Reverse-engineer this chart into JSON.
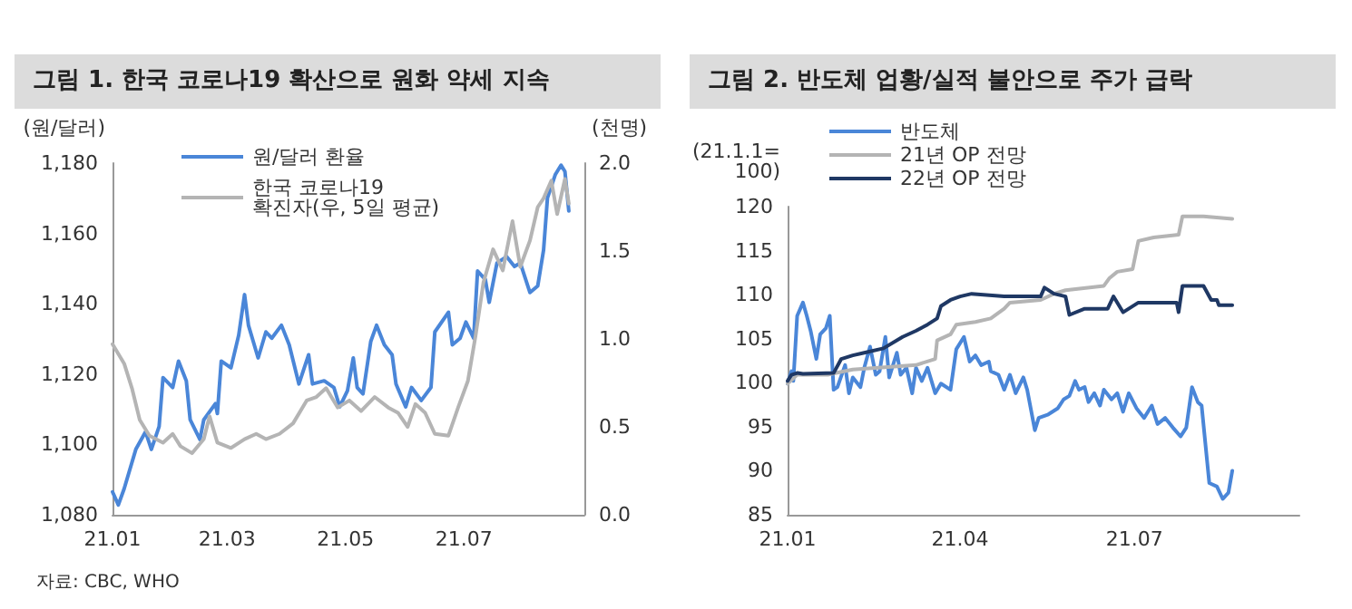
{
  "chart_data": [
    {
      "type": "line",
      "title": "그림 1. 한국 코로나19 확산으로 원화 약세 지속",
      "ylabel": "(원/달러)",
      "y2label": "(천명)",
      "legend": "top left",
      "annotations": [
        "자료: CBC, WHO"
      ],
      "xlim": [
        "--01-01",
        "--09-01"
      ],
      "xticks": [
        {
          "value": "--01-01",
          "label": "21.01"
        },
        {
          "value": "--03-01",
          "label": "21.03"
        },
        {
          "value": "--05-01",
          "label": "21.05"
        },
        {
          "value": "--07-01",
          "label": "21.07"
        }
      ],
      "ylim": [
        1080,
        1180
      ],
      "yticks": [
        {
          "value": 1080,
          "label": "1,080"
        },
        {
          "value": 1100,
          "label": "1,100"
        },
        {
          "value": 1120,
          "label": "1,120"
        },
        {
          "value": 1140,
          "label": "1,140"
        },
        {
          "value": 1160,
          "label": "1,160"
        },
        {
          "value": 1180,
          "label": "1,180"
        }
      ],
      "y2lim": [
        0,
        2
      ],
      "y2ticks": [
        {
          "value": 0,
          "label": "0.0"
        },
        {
          "value": 0.5,
          "label": "0.5"
        },
        {
          "value": 1,
          "label": "1.0"
        },
        {
          "value": 1.5,
          "label": "1.5"
        },
        {
          "value": 2,
          "label": "2.0"
        }
      ],
      "series": [
        {
          "name": "원/달러 환율",
          "color": "#4a86d8",
          "x": [
            "--01-01",
            "--01-04",
            "--01-07",
            "--01-13",
            "--01-18",
            "--01-21",
            "--01-25",
            "--01-27",
            "--02-01",
            "--02-04",
            "--02-08",
            "--02-10",
            "--02-15",
            "--02-17",
            "--02-23",
            "--02-24",
            "--02-26",
            "--03-03",
            "--03-07",
            "--03-10",
            "--03-12",
            "--03-17",
            "--03-21",
            "--03-24",
            "--03-29",
            "--04-02",
            "--04-07",
            "--04-12",
            "--04-14",
            "--04-20",
            "--04-25",
            "--04-28",
            "--05-02",
            "--05-05",
            "--05-07",
            "--05-10",
            "--05-14",
            "--05-17",
            "--05-21",
            "--05-25",
            "--05-27",
            "--06-01",
            "--06-04",
            "--06-09",
            "--06-14",
            "--06-16",
            "--06-23",
            "--06-25",
            "--06-29",
            "--07-02",
            "--07-06",
            "--07-08",
            "--07-12",
            "--07-14",
            "--07-18",
            "--07-23",
            "--07-27",
            "--07-30",
            "--08-04",
            "--08-08",
            "--08-11",
            "--08-13",
            "--08-17",
            "--08-20",
            "--08-22",
            "--08-24"
          ],
          "values": [
            1086.5,
            1082.8,
            1087.4,
            1098.6,
            1103.6,
            1098.6,
            1105.1,
            1119.0,
            1116.2,
            1123.7,
            1118.1,
            1107.0,
            1101.4,
            1107.0,
            1111.6,
            1108.8,
            1123.7,
            1121.8,
            1131.1,
            1142.6,
            1133.9,
            1124.6,
            1132.0,
            1130.2,
            1133.9,
            1128.3,
            1117.2,
            1125.5,
            1117.2,
            1118.1,
            1116.2,
            1110.7,
            1115.3,
            1124.6,
            1116.2,
            1114.4,
            1129.3,
            1133.9,
            1128.3,
            1125.5,
            1117.2,
            1110.7,
            1116.2,
            1112.5,
            1116.2,
            1132.0,
            1137.6,
            1128.3,
            1130.2,
            1134.8,
            1130.2,
            1149.3,
            1146.9,
            1140.4,
            1151.6,
            1153.4,
            1150.6,
            1151.6,
            1143.2,
            1145.1,
            1155.3,
            1170.1,
            1176.7,
            1179.4,
            1177.6,
            1166.4
          ]
        },
        {
          "name": "한국 코로나19\n확진자(우, 5일 평균)",
          "color": "#b4b4b4",
          "axis": "y2",
          "x": [
            "--01-01",
            "--01-07",
            "--01-11",
            "--01-15",
            "--01-20",
            "--01-27",
            "--02-01",
            "--02-05",
            "--02-11",
            "--02-17",
            "--02-20",
            "--02-24",
            "--03-03",
            "--03-10",
            "--03-16",
            "--03-21",
            "--03-28",
            "--04-04",
            "--04-11",
            "--04-16",
            "--04-21",
            "--04-27",
            "--05-03",
            "--05-09",
            "--05-16",
            "--05-23",
            "--05-28",
            "--06-02",
            "--06-06",
            "--06-11",
            "--06-16",
            "--06-23",
            "--06-28",
            "--07-03",
            "--07-07",
            "--07-11",
            "--07-16",
            "--07-21",
            "--07-26",
            "--07-30",
            "--08-04",
            "--08-08",
            "--08-11",
            "--08-15",
            "--08-18",
            "--08-22",
            "--08-24"
          ],
          "values": [
            0.97,
            0.86,
            0.72,
            0.54,
            0.45,
            0.41,
            0.46,
            0.39,
            0.35,
            0.43,
            0.56,
            0.41,
            0.38,
            0.43,
            0.46,
            0.43,
            0.46,
            0.52,
            0.65,
            0.67,
            0.72,
            0.61,
            0.65,
            0.59,
            0.67,
            0.61,
            0.58,
            0.5,
            0.63,
            0.58,
            0.46,
            0.45,
            0.61,
            0.76,
            1.02,
            1.32,
            1.51,
            1.39,
            1.67,
            1.41,
            1.56,
            1.75,
            1.8,
            1.9,
            1.71,
            1.91,
            1.77
          ]
        }
      ]
    },
    {
      "type": "line",
      "title": "그림 2. 반도체 업황/실적 불안으로 주가 급락",
      "ylabel": "(21.1.1=\n100)",
      "legend": "top left",
      "xlim": [
        "--01-01",
        "--09-25"
      ],
      "xticks": [
        {
          "value": "--01-01",
          "label": "21.01"
        },
        {
          "value": "--04-01",
          "label": "21.04"
        },
        {
          "value": "--07-01",
          "label": "21.07"
        }
      ],
      "ylim": [
        85,
        120
      ],
      "yticks": [
        85,
        90,
        95,
        100,
        105,
        110,
        115,
        120
      ],
      "series": [
        {
          "name": "반도체",
          "color": "#4a86d8",
          "x": [
            "--01-01",
            "--01-03",
            "--01-04",
            "--01-06",
            "--01-09",
            "--01-11",
            "--01-13",
            "--01-16",
            "--01-18",
            "--01-21",
            "--01-23",
            "--01-25",
            "--01-27",
            "--01-31",
            "--02-02",
            "--02-04",
            "--02-08",
            "--02-10",
            "--02-13",
            "--02-16",
            "--02-18",
            "--02-21",
            "--02-23",
            "--02-27",
            "--03-01",
            "--03-04",
            "--03-07",
            "--03-09",
            "--03-12",
            "--03-15",
            "--03-19",
            "--03-22",
            "--03-27",
            "--03-30",
            "--04-03",
            "--04-06",
            "--04-09",
            "--04-12",
            "--04-16",
            "--04-17",
            "--04-21",
            "--04-24",
            "--04-27",
            "--04-30",
            "--05-04",
            "--05-06",
            "--05-10",
            "--05-12",
            "--05-17",
            "--05-22",
            "--05-25",
            "--05-28",
            "--05-31",
            "--06-02",
            "--06-05",
            "--06-07",
            "--06-10",
            "--06-13",
            "--06-15",
            "--06-19",
            "--06-22",
            "--06-25",
            "--06-28",
            "--07-02",
            "--07-06",
            "--07-10",
            "--07-13",
            "--07-17",
            "--07-21",
            "--07-25",
            "--07-28",
            "--07-31",
            "--08-03",
            "--08-05",
            "--08-09",
            "--08-13",
            "--08-16",
            "--08-19",
            "--08-21"
          ],
          "values": [
            99.9,
            101.3,
            100.2,
            107.6,
            109.1,
            107.6,
            105.9,
            102.7,
            105.5,
            106.2,
            107.6,
            99.2,
            99.5,
            102.0,
            98.8,
            100.6,
            99.5,
            101.7,
            104.1,
            100.9,
            101.3,
            105.2,
            100.6,
            103.4,
            100.9,
            101.7,
            98.8,
            101.7,
            100.2,
            101.7,
            98.8,
            99.9,
            99.2,
            103.8,
            105.2,
            102.4,
            103.1,
            102.0,
            102.4,
            101.3,
            100.9,
            99.2,
            100.9,
            98.8,
            100.6,
            99.2,
            94.6,
            96.0,
            96.4,
            97.1,
            98.1,
            98.5,
            100.2,
            99.2,
            99.5,
            97.8,
            98.8,
            97.4,
            99.2,
            98.1,
            98.8,
            96.7,
            98.8,
            97.1,
            96.0,
            97.4,
            95.3,
            96.0,
            94.9,
            93.9,
            94.9,
            99.5,
            97.8,
            97.4,
            88.6,
            88.2,
            86.8,
            87.5,
            90.0
          ]
        },
        {
          "name": "21년 OP 전망",
          "color": "#b4b4b4",
          "x": [
            "--01-01",
            "--01-06",
            "--01-22",
            "--01-24",
            "--02-04",
            "--02-24",
            "--03-09",
            "--03-19",
            "--03-20",
            "--03-27",
            "--03-30",
            "--04-09",
            "--04-17",
            "--04-24",
            "--04-27",
            "--05-13",
            "--05-20",
            "--05-26",
            "--06-15",
            "--06-18",
            "--06-22",
            "--06-30",
            "--07-03",
            "--07-11",
            "--07-24",
            "--07-26",
            "--08-06",
            "--08-21"
          ],
          "values": [
            99.9,
            100.9,
            100.9,
            101.0,
            101.5,
            101.8,
            102.0,
            102.7,
            104.8,
            105.5,
            106.6,
            106.9,
            107.3,
            108.4,
            109.1,
            109.4,
            110.1,
            110.5,
            111.0,
            111.9,
            112.6,
            112.9,
            116.1,
            116.5,
            116.8,
            118.9,
            118.9,
            118.6
          ]
        },
        {
          "name": "22년 OP 전망",
          "color": "#1f3864",
          "x": [
            "--01-01",
            "--01-03",
            "--01-06",
            "--01-09",
            "--01-25",
            "--01-29",
            "--02-04",
            "--02-10",
            "--02-20",
            "--03-02",
            "--03-09",
            "--03-15",
            "--03-20",
            "--03-22",
            "--03-27",
            "--04-01",
            "--04-07",
            "--04-24",
            "--05-13",
            "--05-15",
            "--05-20",
            "--05-26",
            "--05-28",
            "--06-05",
            "--06-17",
            "--06-20",
            "--06-25",
            "--07-03",
            "--07-23",
            "--07-24",
            "--07-26",
            "--08-06",
            "--08-10",
            "--08-13",
            "--08-14",
            "--08-21"
          ],
          "values": [
            100.2,
            100.9,
            101.1,
            101.0,
            101.1,
            102.7,
            103.1,
            103.4,
            103.9,
            105.2,
            105.9,
            106.6,
            107.3,
            108.7,
            109.4,
            109.8,
            110.1,
            109.8,
            109.8,
            110.8,
            110.1,
            109.8,
            107.7,
            108.4,
            108.4,
            109.8,
            108.0,
            109.1,
            109.1,
            108.0,
            111.0,
            111.0,
            109.4,
            109.4,
            108.8,
            108.8
          ]
        }
      ]
    }
  ]
}
